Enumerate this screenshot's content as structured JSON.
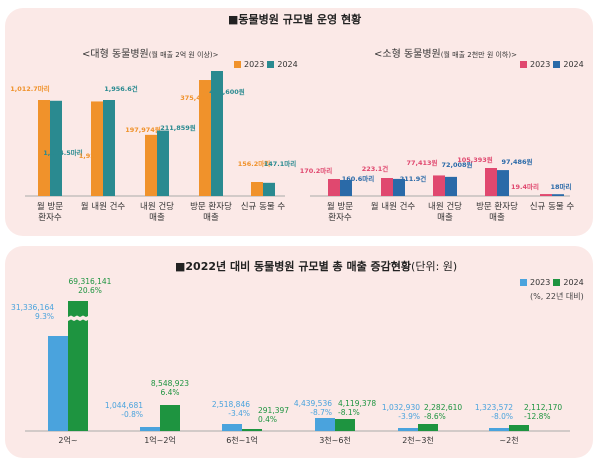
{
  "page_title": "■동물병원 규모별 운영 현황",
  "chart_data": [
    {
      "type": "bar",
      "title": "<대형 동물병원(월 매출 2억 원 이상)>",
      "title_main": "<대형 동물병원",
      "title_sub": "(월 매출 2억 원 이상)>",
      "categories": [
        "월 방문\n환자수",
        "월 내원 건수",
        "내원 건당\n매출",
        "방문 환자당\n매출",
        "신규 동물 수"
      ],
      "category_lines": [
        [
          "월 방문",
          "환자수"
        ],
        [
          "월 내원 건수"
        ],
        [
          "내원 건당",
          "매출"
        ],
        [
          "방문 환자당",
          "매출"
        ],
        [
          "신규 동물 수"
        ]
      ],
      "series": [
        {
          "name": "2023",
          "color": "#f0922b",
          "values": [
            1012.7,
            1927,
            197974,
            375424,
            156.2
          ],
          "labels": [
            "1,012.7마리",
            "1,927건",
            "197,974원",
            "375,424원",
            "156.2마리"
          ]
        },
        {
          "name": "2024",
          "color": "#2a8a90",
          "values": [
            1004.5,
            1956.6,
            211859,
            404600,
            147.1
          ],
          "labels": [
            "1,004.5마리",
            "1,956.6건",
            "211,859원",
            "404,600원",
            "147.1마리"
          ]
        }
      ],
      "legend": [
        "2023",
        "2024"
      ],
      "legend_position": "top-right",
      "note": "categories use different units; bars not on a shared scale"
    },
    {
      "type": "bar",
      "title": "<소형 동물병원(월 매출 2천만 원 이하)>",
      "title_main": "<소형 동물병원",
      "title_sub": "(월 매출 2천만 원 이하)>",
      "categories": [
        "월 방문\n환자수",
        "월 내원 건수",
        "내원 건당\n매출",
        "방문 환자당\n매출",
        "신규 동물 수"
      ],
      "category_lines": [
        [
          "월 방문",
          "환자수"
        ],
        [
          "월 내원 건수"
        ],
        [
          "내원 건당",
          "매출"
        ],
        [
          "방문 환자당",
          "매출"
        ],
        [
          "신규 동물 수"
        ]
      ],
      "series": [
        {
          "name": "2023",
          "color": "#e0486f",
          "values": [
            170.2,
            223.1,
            77413,
            105393,
            19.4
          ],
          "labels": [
            "170.2마리",
            "223.1건",
            "77,413원",
            "105,393원",
            "19.4마리"
          ]
        },
        {
          "name": "2024",
          "color": "#2a6aa8",
          "values": [
            160.6,
            211.9,
            72008,
            97486,
            18
          ],
          "labels": [
            "160.6마리",
            "211.9건",
            "72,008원",
            "97,486원",
            "18마리"
          ]
        }
      ],
      "legend": [
        "2023",
        "2024"
      ],
      "legend_position": "top-right"
    },
    {
      "type": "bar",
      "title": "■2022년 대비 동물병원 규모별 총 매출 증감현황",
      "title_unit": "(단위: 원)",
      "categories": [
        "2억~",
        "1억~2억",
        "6천~1억",
        "3천~6천",
        "2천~3천",
        "~2천"
      ],
      "series": [
        {
          "name": "2023",
          "color": "#4aa3dd",
          "values": [
            31336164,
            1044681,
            2518846,
            4439536,
            1032930,
            1323572
          ],
          "labels": [
            "31,336,164",
            "1,044,681",
            "2,518,846",
            "4,439,536",
            "1,032,930",
            "1,323,572"
          ],
          "pct": [
            "9.3%",
            "-0.8%",
            "-3.4%",
            "-8.7%",
            "-3.9%",
            "-8.0%"
          ]
        },
        {
          "name": "2024",
          "color": "#1e9440",
          "values": [
            69316141,
            8548923,
            291397,
            4119378,
            2282610,
            2112170
          ],
          "labels": [
            "69,316,141",
            "8,548,923",
            "291,397",
            "4,119,378",
            "2,282,610",
            "2,112,170"
          ],
          "pct": [
            "20.6%",
            "6.4%",
            "0.4%",
            "-8.1%",
            "-8.6%",
            "-12.8%"
          ]
        }
      ],
      "legend": [
        "2023",
        "2024"
      ],
      "legend_note": "(%, 22년 대비)",
      "legend_position": "top-right",
      "axis_break": "2024 bar of 2억~ is broken (truncated)"
    }
  ]
}
